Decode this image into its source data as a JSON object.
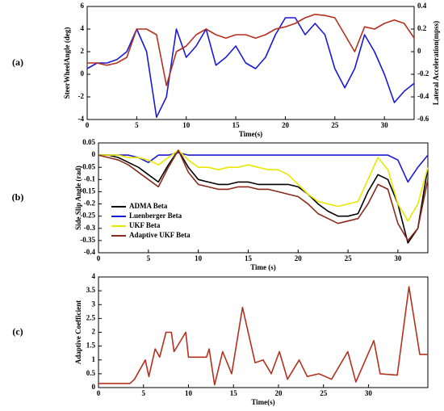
{
  "chart_data": [
    {
      "type": "line",
      "panel_label": "(a)",
      "xlabel": "Time(s)",
      "ylabel": "SteerWheelAngle (deg)",
      "y2label": "Lateral Acceleration(mpss)",
      "ylabel_color": "#1a1ad6",
      "y2label_color": "#b0641e",
      "x": [
        0,
        1,
        2,
        3,
        4,
        5,
        6,
        7,
        8,
        9,
        10,
        11,
        12,
        13,
        14,
        15,
        16,
        17,
        18,
        19,
        20,
        21,
        22,
        23,
        24,
        25,
        26,
        27,
        28,
        29,
        30,
        31,
        32,
        33
      ],
      "xlim": [
        0,
        33
      ],
      "xticks": [
        0,
        5,
        10,
        15,
        20,
        25,
        30
      ],
      "ylim": [
        -4,
        6
      ],
      "yticks": [
        -4,
        -2,
        0,
        2,
        4,
        6
      ],
      "y2lim": [
        -0.6,
        0.4
      ],
      "y2ticks": [
        -0.6,
        -0.4,
        -0.2,
        0,
        0.2,
        0.4
      ],
      "series": [
        {
          "color": "#1a1ad6",
          "values": [
            0.5,
            1,
            1,
            1.3,
            2,
            4,
            2,
            -3.8,
            -2,
            4,
            1.5,
            2.5,
            4,
            0.8,
            1.5,
            2.5,
            1,
            0.5,
            1.5,
            3.5,
            5,
            5,
            3.5,
            4.5,
            3.5,
            0.5,
            -1.2,
            0.5,
            3.5,
            2,
            0,
            -2.5,
            -1.5,
            -0.8
          ]
        },
        {
          "color": "#b5301f",
          "axis": "y2",
          "values": [
            -0.1,
            -0.1,
            -0.12,
            -0.1,
            -0.05,
            0.2,
            0.2,
            0.15,
            -0.3,
            0,
            0.05,
            0.15,
            0.2,
            0.15,
            0.12,
            0.15,
            0.15,
            0.12,
            0.15,
            0.2,
            0.22,
            0.25,
            0.3,
            0.33,
            0.32,
            0.3,
            0.15,
            0,
            0.22,
            0.2,
            0.25,
            0.28,
            0.25,
            0.12
          ]
        }
      ]
    },
    {
      "type": "line",
      "panel_label": "(b)",
      "xlabel": "Time (s)",
      "ylabel": "Side Slip Angle (rad)",
      "legend": "lower left",
      "x": [
        0,
        1,
        2,
        3,
        4,
        5,
        6,
        7,
        8,
        9,
        10,
        11,
        12,
        13,
        14,
        15,
        16,
        17,
        18,
        19,
        20,
        21,
        22,
        23,
        24,
        25,
        26,
        27,
        28,
        29,
        30,
        31,
        32,
        33
      ],
      "xlim": [
        0,
        33
      ],
      "xticks": [
        0,
        5,
        10,
        15,
        20,
        25,
        30
      ],
      "ylim": [
        -0.4,
        0.05
      ],
      "yticks": [
        0.05,
        0,
        -0.05,
        -0.1,
        -0.15,
        -0.2,
        -0.25,
        -0.3,
        -0.35,
        -0.4
      ],
      "series": [
        {
          "name": "ADMA Beta",
          "color": "#000000",
          "values": [
            0,
            0,
            -0.01,
            -0.03,
            -0.05,
            -0.08,
            -0.11,
            -0.04,
            0.02,
            -0.05,
            -0.1,
            -0.11,
            -0.12,
            -0.12,
            -0.11,
            -0.11,
            -0.12,
            -0.12,
            -0.12,
            -0.12,
            -0.13,
            -0.16,
            -0.2,
            -0.23,
            -0.25,
            -0.25,
            -0.24,
            -0.15,
            -0.08,
            -0.1,
            -0.2,
            -0.36,
            -0.3,
            -0.05
          ]
        },
        {
          "name": "Luenberger Beta",
          "color": "#1a1ad6",
          "values": [
            0,
            0,
            0,
            0,
            -0.01,
            -0.03,
            0,
            0,
            0.01,
            0,
            0,
            0,
            0,
            0,
            0,
            0,
            0,
            0,
            0,
            0,
            0,
            0,
            0,
            0,
            0,
            0,
            0,
            0,
            0,
            0,
            -0.02,
            -0.11,
            -0.05,
            0
          ]
        },
        {
          "name": "UKF Beta",
          "color": "#e8e800",
          "values": [
            0,
            0,
            0,
            -0.01,
            -0.01,
            -0.02,
            -0.04,
            -0.01,
            0.02,
            -0.02,
            -0.05,
            -0.05,
            -0.06,
            -0.05,
            -0.05,
            -0.04,
            -0.05,
            -0.06,
            -0.06,
            -0.08,
            -0.12,
            -0.16,
            -0.19,
            -0.2,
            -0.21,
            -0.2,
            -0.19,
            -0.1,
            -0.01,
            -0.06,
            -0.2,
            -0.27,
            -0.2,
            -0.05
          ]
        },
        {
          "name": "Adaptive UKF Beta",
          "color": "#8b2a1a",
          "values": [
            0,
            -0.01,
            -0.02,
            -0.04,
            -0.07,
            -0.1,
            -0.13,
            -0.05,
            0.02,
            -0.07,
            -0.12,
            -0.13,
            -0.14,
            -0.14,
            -0.13,
            -0.13,
            -0.14,
            -0.14,
            -0.15,
            -0.16,
            -0.17,
            -0.2,
            -0.24,
            -0.26,
            -0.28,
            -0.27,
            -0.26,
            -0.2,
            -0.12,
            -0.14,
            -0.28,
            -0.35,
            -0.3,
            -0.1
          ]
        }
      ]
    },
    {
      "type": "line",
      "panel_label": "(c)",
      "xlabel": "Time(s)",
      "ylabel": "Adaptive Coefficient",
      "x": [
        0,
        3.5,
        4,
        5.2,
        5.6,
        6.3,
        6.8,
        7.5,
        8.1,
        8.4,
        9.7,
        10,
        12,
        12.3,
        12.9,
        13.8,
        14.8,
        16,
        17.4,
        18.3,
        19.2,
        20.1,
        21,
        22.3,
        23.2,
        24.5,
        25.9,
        27.7,
        28.6,
        30.6,
        31.3,
        33.2,
        34.5,
        35.7,
        36.6
      ],
      "xlim": [
        0,
        36.6
      ],
      "xticks": [
        0,
        5,
        10,
        15,
        20,
        25,
        30
      ],
      "ylim": [
        0,
        4
      ],
      "yticks": [
        0,
        0.5,
        1,
        1.5,
        2,
        2.5,
        3,
        3.5,
        4
      ],
      "series": [
        {
          "color": "#b5301f",
          "values": [
            0.15,
            0.15,
            0.3,
            1.0,
            0.4,
            1.4,
            1.1,
            2.0,
            2.0,
            1.3,
            2.0,
            1.1,
            1.1,
            1.4,
            0.1,
            1.3,
            0.5,
            2.9,
            0.9,
            1.0,
            0.5,
            1.3,
            0.3,
            1.0,
            0.4,
            0.5,
            0.3,
            1.3,
            0.2,
            1.7,
            0.5,
            0.45,
            3.65,
            1.2,
            1.2
          ]
        }
      ]
    }
  ]
}
